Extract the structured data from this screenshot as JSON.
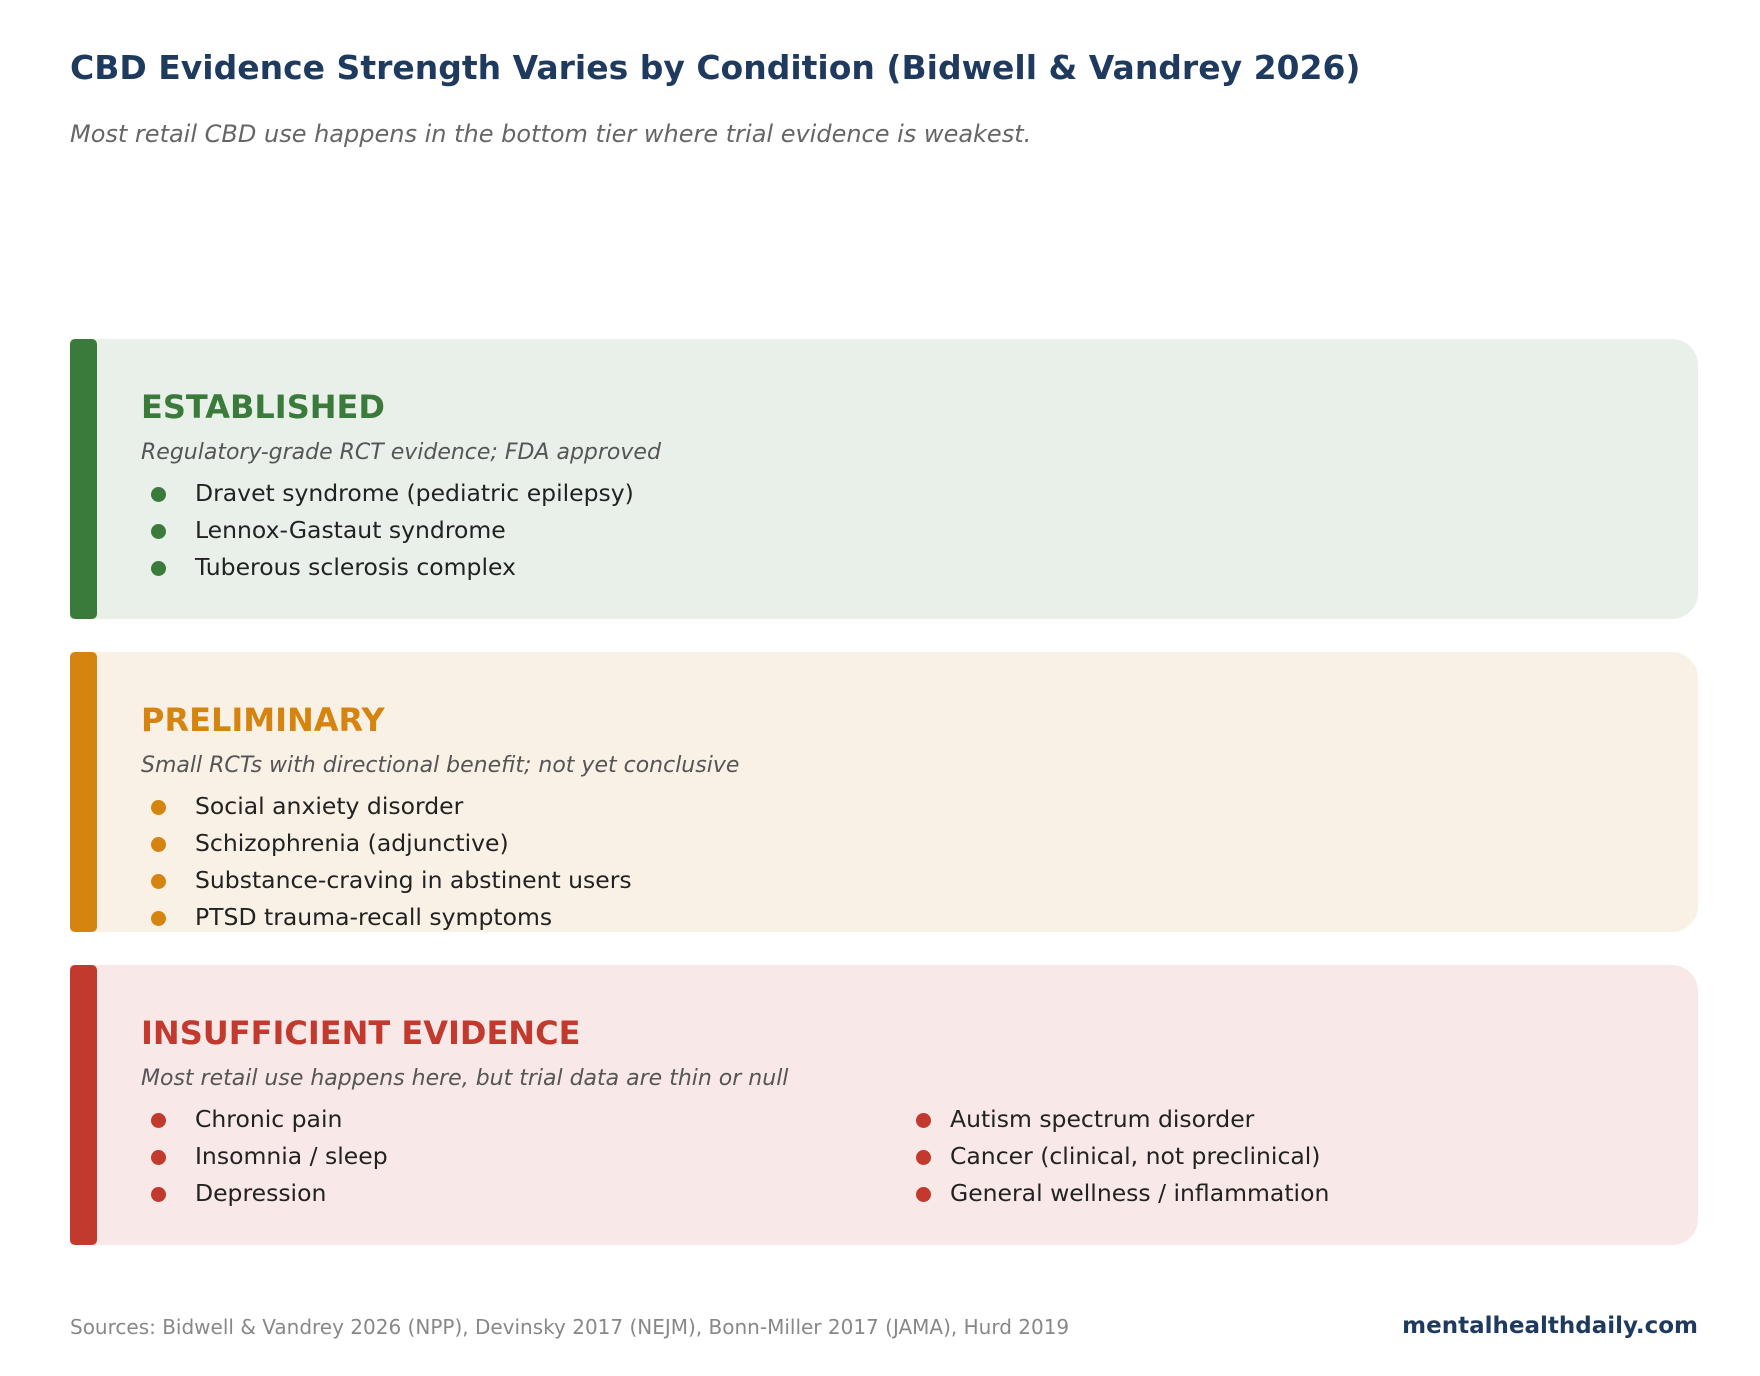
{
  "header": {
    "title": "CBD Evidence Strength Varies by Condition (Bidwell & Vandrey 2026)",
    "subtitle": "Most retail CBD use happens in the bottom tier where trial evidence is weakest."
  },
  "tiers": [
    {
      "name": "ESTABLISHED",
      "description": "Regulatory-grade RCT evidence; FDA approved",
      "color": "#3a7a3a",
      "items": [
        "Dravet syndrome (pediatric epilepsy)",
        "Lennox-Gastaut syndrome",
        "Tuberous sclerosis complex"
      ]
    },
    {
      "name": "PRELIMINARY",
      "description": "Small RCTs with directional benefit; not yet conclusive",
      "color": "#d5840f",
      "items": [
        "Social anxiety disorder",
        "Schizophrenia (adjunctive)",
        "Substance-craving in abstinent users",
        "PTSD trauma-recall symptoms"
      ]
    },
    {
      "name": "INSUFFICIENT EVIDENCE",
      "description": "Most retail use happens here, but trial data are thin or null",
      "color": "#c2392d",
      "items": [
        "Chronic pain",
        "Insomnia / sleep",
        "Depression",
        "Autism spectrum disorder",
        "Cancer (clinical, not preclinical)",
        "General wellness / inflammation"
      ]
    }
  ],
  "footer": {
    "sources": "Sources: Bidwell & Vandrey 2026 (NPP), Devinsky 2017 (NEJM), Bonn-Miller 2017 (JAMA), Hurd 2019",
    "brand": "mentalhealthdaily.com"
  }
}
